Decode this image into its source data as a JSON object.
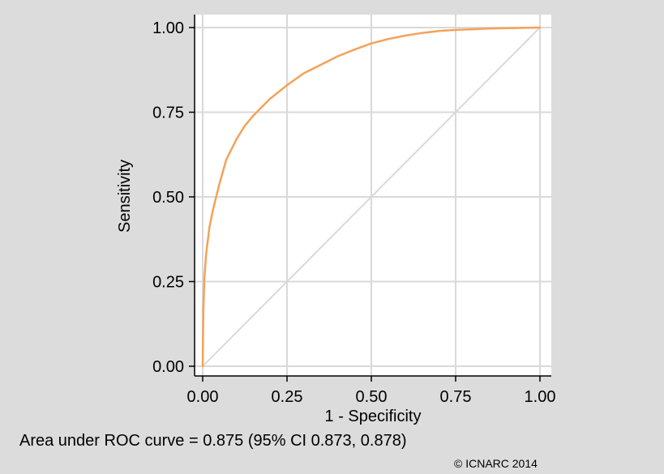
{
  "chart_data": {
    "type": "line",
    "xlabel": "1 - Specificity",
    "ylabel": "Sensitivity",
    "xlim": [
      0,
      1
    ],
    "ylim": [
      0,
      1
    ],
    "x_ticks": [
      "0.00",
      "0.25",
      "0.50",
      "0.75",
      "1.00"
    ],
    "y_ticks": [
      "0.00",
      "0.25",
      "0.50",
      "0.75",
      "1.00"
    ],
    "grid": true,
    "legend": "none",
    "series": [
      {
        "color": "#f4a259",
        "x": [
          0,
          0.002,
          0.005,
          0.01,
          0.02,
          0.03,
          0.05,
          0.07,
          0.1,
          0.125,
          0.15,
          0.2,
          0.25,
          0.3,
          0.35,
          0.4,
          0.45,
          0.5,
          0.55,
          0.6,
          0.65,
          0.7,
          0.75,
          0.8,
          0.85,
          0.9,
          0.95,
          1.0
        ],
        "y": [
          0,
          0.16,
          0.26,
          0.33,
          0.41,
          0.46,
          0.54,
          0.61,
          0.67,
          0.71,
          0.74,
          0.79,
          0.83,
          0.865,
          0.89,
          0.915,
          0.935,
          0.953,
          0.966,
          0.976,
          0.984,
          0.99,
          0.993,
          0.995,
          0.997,
          0.998,
          0.999,
          1.0
        ]
      },
      {
        "color": "#d9d9d9",
        "x": [
          0,
          1
        ],
        "y": [
          0,
          1
        ]
      }
    ]
  },
  "footer": {
    "auc_text": "Area under ROC curve = 0.875 (95% CI 0.873, 0.878)",
    "copyright": "© ICNARC 2014"
  }
}
